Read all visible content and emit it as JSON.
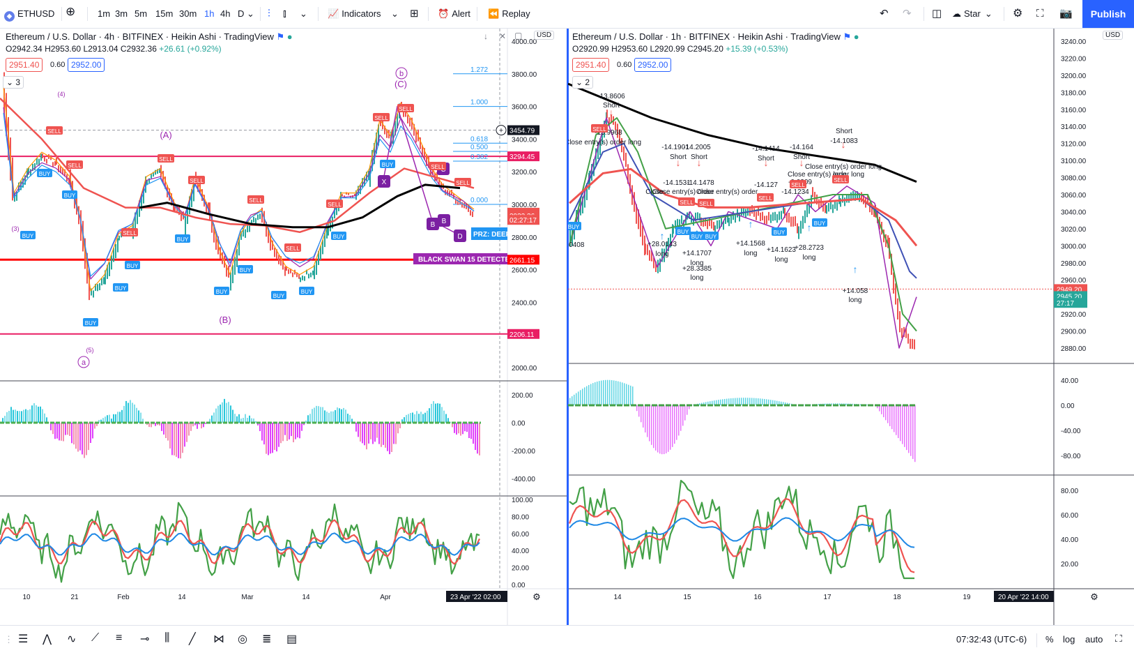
{
  "toolbar": {
    "symbol": "ETHUSD",
    "intervals": [
      "1m",
      "3m",
      "5m",
      "15m",
      "30m",
      "1h",
      "4h",
      "D"
    ],
    "active_interval": "1h",
    "indicators": "Indicators",
    "alert": "Alert",
    "replay": "Replay",
    "star": "Star",
    "publish": "Publish"
  },
  "left": {
    "title": "Ethereum / U.S. Dollar · 4h · BITFINEX · Heikin Ashi · TradingView",
    "ohlc": {
      "o": "O2942.34",
      "h": "H2953.60",
      "l": "L2913.04",
      "c": "C2932.36",
      "chg": "+26.61 (+0.92%)"
    },
    "sell_price": "2951.40",
    "spread": "0.60",
    "buy_price": "2952.00",
    "counter": "3",
    "currency": "USD",
    "price_ticks": [
      "4000.00",
      "3800.00",
      "3600.00",
      "3400.00",
      "3200.00",
      "3000.00",
      "2800.00",
      "2600.00",
      "2400.00",
      "2200.00",
      "2000.00"
    ],
    "price_labels": [
      {
        "text": "3454.79",
        "bg": "#131722",
        "value": 3454.79
      },
      {
        "text": "3294.45",
        "bg": "#e91e63",
        "value": 3294.45
      },
      {
        "text": "2949.20",
        "bg": "#ef5350",
        "value": 2949.2
      },
      {
        "text": "2932.36",
        "bg": "#ef5350",
        "value": 2932.36
      },
      {
        "text": "02:27:17",
        "bg": "#ef5350",
        "value": 2905
      },
      {
        "text": "2661.15",
        "bg": "#ff0000",
        "value": 2661.15
      },
      {
        "text": "2206.11",
        "bg": "#e91e63",
        "value": 2206.11
      }
    ],
    "macd_ticks": [
      "200.00",
      "0.00",
      "-200.00",
      "-400.00"
    ],
    "rsi_ticks": [
      "100.00",
      "80.00",
      "60.00",
      "40.00",
      "20.00",
      "0.00"
    ],
    "time_ticks": [
      "10",
      "21",
      "Feb",
      "14",
      "Mar",
      "14",
      "Apr"
    ],
    "time_label": "23 Apr '22  02:00",
    "fib_labels": [
      "1.272",
      "1.000",
      "0.618",
      "0.500",
      "0.382",
      "0.000"
    ],
    "wave_labels": [
      "(A)",
      "(B)",
      "(C)",
      "(4)",
      "(3)",
      "(5)"
    ],
    "circle_labels": [
      "b",
      "a"
    ],
    "pattern_labels": [
      "X",
      "B",
      "B",
      "D",
      "C"
    ],
    "banner": "BLACK SWAN 15 DETECTED",
    "prz": "PRZ: DEEP"
  },
  "right": {
    "title": "Ethereum / U.S. Dollar · 1h · BITFINEX · Heikin Ashi · TradingView",
    "ohlc": {
      "o": "O2920.99",
      "h": "H2953.60",
      "l": "L2920.99",
      "c": "C2945.20",
      "chg": "+15.39 (+0.53%)"
    },
    "sell_price": "2951.40",
    "spread": "0.60",
    "buy_price": "2952.00",
    "counter": "2",
    "currency": "USD",
    "price_ticks": [
      "3240.00",
      "3220.00",
      "3200.00",
      "3180.00",
      "3160.00",
      "3140.00",
      "3120.00",
      "3100.00",
      "3080.00",
      "3060.00",
      "3040.00",
      "3020.00",
      "3000.00",
      "2980.00",
      "2960.00",
      "2940.00",
      "2920.00",
      "2900.00",
      "2880.00"
    ],
    "price_labels": [
      {
        "text": "2949.20",
        "bg": "#ef5350",
        "value": 2949.2
      },
      {
        "text": "2945.20",
        "bg": "#26a69a",
        "value": 2941
      },
      {
        "text": "27:17",
        "bg": "#26a69a",
        "value": 2933
      }
    ],
    "macd_ticks": [
      "40.00",
      "0.00",
      "-40.00",
      "-80.00"
    ],
    "rsi_ticks": [
      "80.00",
      "60.00",
      "40.00",
      "20.00"
    ],
    "time_ticks": [
      "14",
      "15",
      "16",
      "17",
      "18",
      "19"
    ],
    "time_label": "20 Apr '22  14:00",
    "annotations": [
      "-13.8606",
      "Short",
      "-13.9968",
      "Close entry(s) order long",
      "-14.1901",
      "-14.2005",
      "Short",
      "Short",
      "-14.1531",
      "-14.1478",
      "Close",
      "Close entry(s) order",
      "Close entry(s) order",
      "-14.1414",
      "Short",
      "-14.164",
      "Short",
      "-14.127",
      "-0.0209",
      "Close entry(s) order long",
      "-14.1234",
      "Short",
      "-14.1083",
      "Close entry(s) order long",
      "long",
      "+28.0143",
      "long",
      "+14.1707",
      "long",
      "+28.3385",
      "long",
      "+14.1568",
      "long",
      "+14.1623",
      "long",
      "+28.2723",
      "long",
      "+14.058",
      "long",
      "+.0408"
    ]
  },
  "bottom": {
    "clock": "07:32:43 (UTC-6)",
    "percent": "%",
    "log": "log",
    "auto": "auto"
  }
}
